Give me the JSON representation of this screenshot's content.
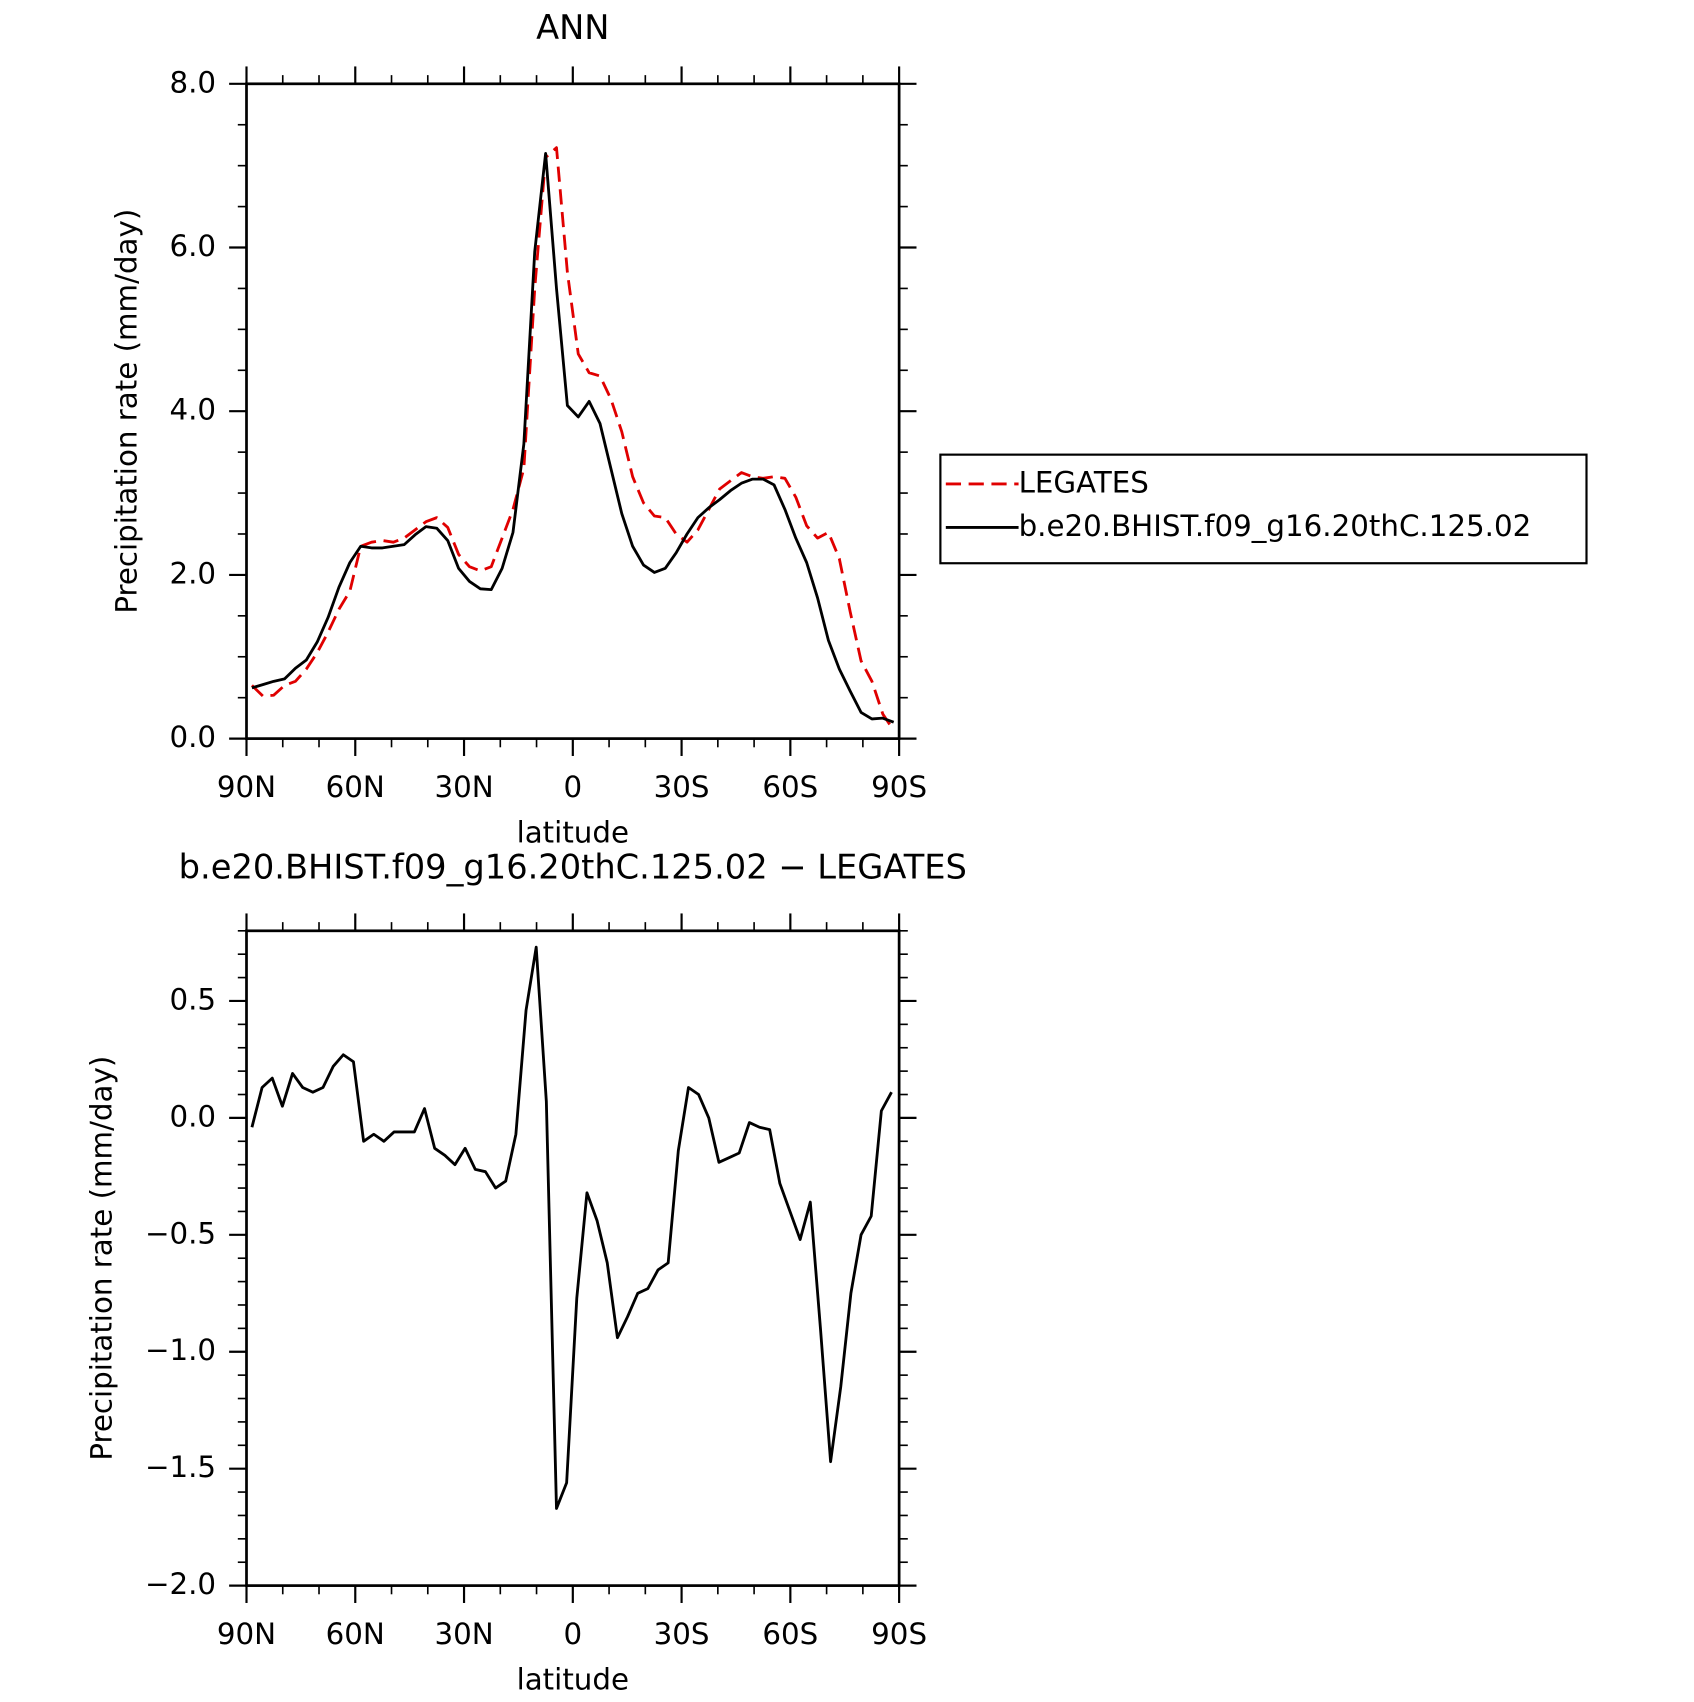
{
  "chart_data": [
    {
      "type": "line",
      "title": "ANN",
      "xlabel": "latitude",
      "ylabel": "Precipitation rate (mm/day)",
      "x": [
        88.5,
        85.5,
        82.5,
        79.5,
        76.5,
        73.5,
        70.5,
        67.5,
        64.5,
        61.5,
        58.5,
        55.5,
        52.5,
        49.5,
        46.5,
        43.5,
        40.5,
        37.5,
        34.5,
        31.5,
        28.5,
        25.5,
        22.5,
        19.5,
        16.5,
        13.5,
        10.5,
        7.5,
        4.5,
        1.5,
        -1.5,
        -4.5,
        -7.5,
        -10.5,
        -13.5,
        -16.5,
        -19.5,
        -22.5,
        -25.5,
        -28.5,
        -31.5,
        -34.5,
        -37.5,
        -40.5,
        -43.5,
        -46.5,
        -49.5,
        -52.5,
        -55.5,
        -58.5,
        -61.5,
        -64.5,
        -67.5,
        -70.5,
        -73.5,
        -76.5,
        -79.5,
        -82.5,
        -85.5,
        -88.5
      ],
      "series": [
        {
          "name": "LEGATES",
          "color": "#e00000",
          "linestyle": "dashed",
          "values": [
            0.65,
            0.52,
            0.53,
            0.65,
            0.7,
            0.85,
            1.05,
            1.3,
            1.58,
            1.8,
            2.35,
            2.4,
            2.42,
            2.4,
            2.45,
            2.55,
            2.65,
            2.7,
            2.58,
            2.25,
            2.1,
            2.05,
            2.1,
            2.45,
            2.8,
            3.3,
            5.5,
            7.1,
            7.22,
            5.7,
            4.7,
            4.47,
            4.43,
            4.15,
            3.75,
            3.2,
            2.88,
            2.72,
            2.7,
            2.5,
            2.4,
            2.55,
            2.8,
            3.05,
            3.15,
            3.25,
            3.2,
            3.18,
            3.2,
            3.18,
            2.95,
            2.6,
            2.45,
            2.52,
            2.2,
            1.55,
            0.95,
            0.7,
            0.3,
            0.1
          ]
        },
        {
          "name": "b.e20.BHIST.f09_g16.20thC.125.02",
          "color": "#000000",
          "linestyle": "solid",
          "values": [
            0.62,
            0.66,
            0.7,
            0.73,
            0.86,
            0.96,
            1.18,
            1.48,
            1.85,
            2.15,
            2.35,
            2.33,
            2.33,
            2.35,
            2.37,
            2.49,
            2.59,
            2.57,
            2.42,
            2.08,
            1.92,
            1.83,
            1.82,
            2.08,
            2.52,
            3.6,
            5.95,
            7.15,
            5.5,
            4.07,
            3.93,
            4.12,
            3.85,
            3.3,
            2.75,
            2.35,
            2.12,
            2.03,
            2.08,
            2.27,
            2.5,
            2.7,
            2.82,
            2.92,
            3.03,
            3.12,
            3.17,
            3.17,
            3.1,
            2.8,
            2.45,
            2.15,
            1.72,
            1.2,
            0.85,
            0.58,
            0.32,
            0.24,
            0.25,
            0.2
          ]
        }
      ],
      "xlim": [
        90,
        -90
      ],
      "xticks": [
        {
          "value": 90,
          "label": "90N"
        },
        {
          "value": 60,
          "label": "60N"
        },
        {
          "value": 30,
          "label": "30N"
        },
        0,
        {
          "value": -30,
          "label": "30S"
        },
        {
          "value": -60,
          "label": "60S"
        },
        {
          "value": -90,
          "label": "90S"
        }
      ],
      "xminorticks": [
        80,
        70,
        50,
        40,
        20,
        10,
        -10,
        -20,
        -40,
        -50,
        -70,
        -80
      ],
      "ylim": [
        0,
        8
      ],
      "yticks": [
        {
          "value": 0,
          "label": "0.0"
        },
        {
          "value": 2,
          "label": "2.0"
        },
        {
          "value": 4,
          "label": "4.0"
        },
        {
          "value": 6,
          "label": "6.0"
        },
        {
          "value": 8,
          "label": "8.0"
        }
      ],
      "yminorticks": [
        0.5,
        1,
        1.5,
        2.5,
        3,
        3.5,
        4.5,
        5,
        5.5,
        6.5,
        7,
        7.5
      ],
      "legend": "right"
    },
    {
      "type": "line",
      "title": "b.e20.BHIST.f09_g16.20thC.125.02 − LEGATES",
      "xlabel": "latitude",
      "ylabel": "Precipitation rate (mm/day)",
      "x": [
        88.5,
        85.7,
        82.9,
        80.1,
        77.3,
        74.5,
        71.7,
        68.9,
        66.1,
        63.3,
        60.5,
        57.7,
        54.9,
        52.1,
        49.3,
        46.5,
        43.7,
        40.9,
        38.1,
        35.3,
        32.5,
        29.7,
        26.9,
        24.1,
        21.3,
        18.5,
        15.7,
        12.9,
        10.1,
        7.3,
        4.5,
        1.7,
        -1.1,
        -3.9,
        -6.7,
        -9.5,
        -12.3,
        -15.1,
        -17.9,
        -20.7,
        -23.5,
        -26.3,
        -29.1,
        -31.9,
        -34.7,
        -37.5,
        -40.3,
        -43.1,
        -45.9,
        -48.7,
        -51.5,
        -54.3,
        -57.1,
        -59.9,
        -62.7,
        -65.5,
        -68.3,
        -71.1,
        -73.9,
        -76.7,
        -79.5,
        -82.3,
        -85.1,
        -87.9
      ],
      "series": [
        {
          "color": "#000000",
          "linestyle": "solid",
          "values": [
            -0.04,
            0.13,
            0.17,
            0.05,
            0.19,
            0.13,
            0.11,
            0.13,
            0.22,
            0.27,
            0.24,
            -0.1,
            -0.07,
            -0.1,
            -0.06,
            -0.06,
            -0.06,
            0.04,
            -0.13,
            -0.16,
            -0.2,
            -0.13,
            -0.22,
            -0.23,
            -0.3,
            -0.27,
            -0.07,
            0.46,
            0.73,
            0.07,
            -1.67,
            -1.56,
            -0.77,
            -0.32,
            -0.44,
            -0.62,
            -0.94,
            -0.85,
            -0.75,
            -0.73,
            -0.65,
            -0.62,
            -0.14,
            0.13,
            0.1,
            0,
            -0.19,
            -0.17,
            -0.15,
            -0.02,
            -0.04,
            -0.05,
            -0.28,
            -0.4,
            -0.52,
            -0.36,
            -0.9,
            -1.47,
            -1.15,
            -0.75,
            -0.5,
            -0.42,
            0.03,
            0.11
          ]
        }
      ],
      "xlim": [
        90,
        -90
      ],
      "xticks": [
        {
          "value": 90,
          "label": "90N"
        },
        {
          "value": 60,
          "label": "60N"
        },
        {
          "value": 30,
          "label": "30N"
        },
        0,
        {
          "value": -30,
          "label": "30S"
        },
        {
          "value": -60,
          "label": "60S"
        },
        {
          "value": -90,
          "label": "90S"
        }
      ],
      "xminorticks": [
        80,
        70,
        50,
        40,
        20,
        10,
        -10,
        -20,
        -40,
        -50,
        -70,
        -80
      ],
      "ylim": [
        -2,
        0.8
      ],
      "yticks": [
        {
          "value": -2,
          "label": "−2.0"
        },
        {
          "value": -1.5,
          "label": "−1.5"
        },
        {
          "value": -1,
          "label": "−1.0"
        },
        {
          "value": -0.5,
          "label": "−0.5"
        },
        {
          "value": 0,
          "label": "0.0"
        },
        0.5
      ],
      "yminorticks": [
        -1.9,
        -1.8,
        -1.7,
        -1.6,
        -1.4,
        -1.3,
        -1.2,
        -1.1,
        -0.9,
        -0.8,
        -0.7,
        -0.6,
        -0.4,
        -0.3,
        -0.2,
        -0.1,
        0.1,
        0.2,
        0.3,
        0.4,
        0.6,
        0.7,
        0.8
      ]
    }
  ]
}
